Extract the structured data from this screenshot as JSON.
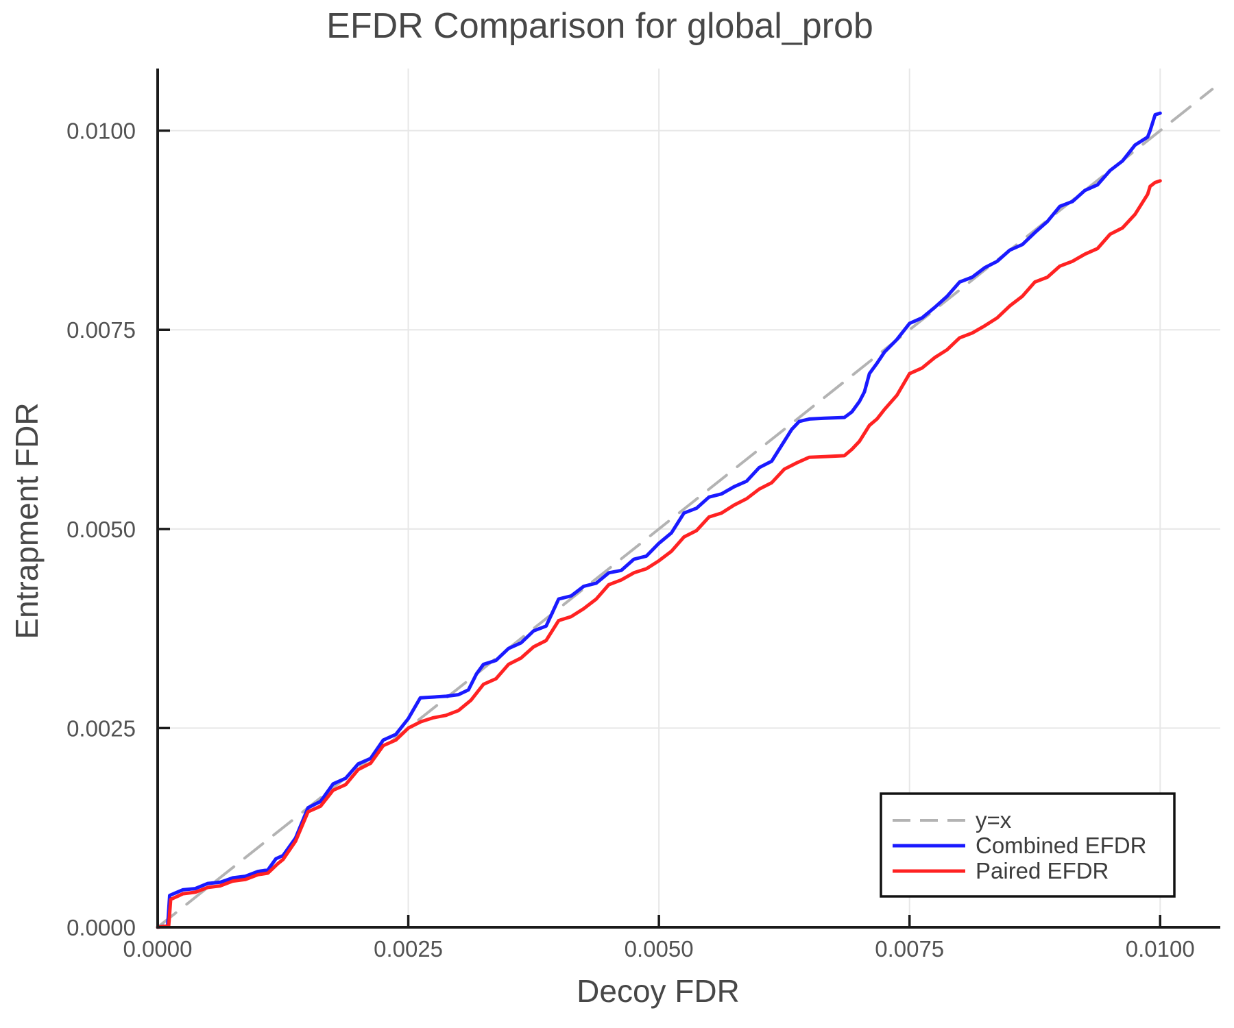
{
  "chart_data": {
    "type": "line",
    "title": "EFDR Comparison for global_prob",
    "xlabel": "Decoy FDR",
    "ylabel": "Entrapment FDR",
    "grid": true,
    "legend_position": "lower right",
    "xlim": [
      0,
      0.0106
    ],
    "ylim": [
      0,
      0.01078
    ],
    "x_ticks": [
      0.0,
      0.0025,
      0.005,
      0.0075,
      0.01
    ],
    "x_tick_labels": [
      "0.0000",
      "0.0025",
      "0.0050",
      "0.0075",
      "0.0100"
    ],
    "y_ticks": [
      0.0,
      0.0025,
      0.005,
      0.0075,
      0.01
    ],
    "y_tick_labels": [
      "0.0000",
      "0.0025",
      "0.0050",
      "0.0075",
      "0.0100"
    ],
    "series": [
      {
        "name": "y=x",
        "color": "#b3b3b3",
        "style": "dashed",
        "points": [
          [
            0.0,
            0.0
          ],
          [
            0.01052,
            0.01052
          ]
        ]
      },
      {
        "name": "Combined EFDR",
        "color": "#1a1aff",
        "style": "solid",
        "points": [
          [
            0.0,
            0.0
          ],
          [
            0.0001,
            2e-05
          ],
          [
            0.00012,
            0.0004
          ],
          [
            0.000185,
            0.000435
          ],
          [
            0.00025,
            0.00047
          ],
          [
            0.000375,
            0.000485
          ],
          [
            0.0005,
            0.00055
          ],
          [
            0.000625,
            0.000565
          ],
          [
            0.00075,
            0.00062
          ],
          [
            0.000875,
            0.00064
          ],
          [
            0.001,
            0.0007
          ],
          [
            0.0011,
            0.00072
          ],
          [
            0.00118,
            0.00086
          ],
          [
            0.00125,
            0.0009
          ],
          [
            0.001375,
            0.00112
          ],
          [
            0.0015,
            0.0015
          ],
          [
            0.001625,
            0.00158
          ],
          [
            0.00175,
            0.0018
          ],
          [
            0.001875,
            0.00187
          ],
          [
            0.002,
            0.00205
          ],
          [
            0.002125,
            0.00212
          ],
          [
            0.00225,
            0.00235
          ],
          [
            0.002375,
            0.00242
          ],
          [
            0.0025,
            0.00262
          ],
          [
            0.00256,
            0.00275
          ],
          [
            0.00262,
            0.00288
          ],
          [
            0.00275,
            0.00289
          ],
          [
            0.00288,
            0.0029
          ],
          [
            0.003,
            0.00292
          ],
          [
            0.0031,
            0.00298
          ],
          [
            0.00318,
            0.00318
          ],
          [
            0.00325,
            0.0033
          ],
          [
            0.003375,
            0.00335
          ],
          [
            0.0035,
            0.0035
          ],
          [
            0.003625,
            0.00357
          ],
          [
            0.00375,
            0.00372
          ],
          [
            0.003875,
            0.00378
          ],
          [
            0.004,
            0.00412
          ],
          [
            0.004125,
            0.00416
          ],
          [
            0.00425,
            0.00428
          ],
          [
            0.004375,
            0.00432
          ],
          [
            0.0045,
            0.00445
          ],
          [
            0.004625,
            0.00448
          ],
          [
            0.00475,
            0.00462
          ],
          [
            0.004875,
            0.00466
          ],
          [
            0.005,
            0.00482
          ],
          [
            0.005125,
            0.00495
          ],
          [
            0.00525,
            0.0052
          ],
          [
            0.005375,
            0.00526
          ],
          [
            0.0055,
            0.0054
          ],
          [
            0.005625,
            0.00544
          ],
          [
            0.00575,
            0.00553
          ],
          [
            0.005875,
            0.0056
          ],
          [
            0.006,
            0.00577
          ],
          [
            0.006125,
            0.00585
          ],
          [
            0.00625,
            0.0061
          ],
          [
            0.006325,
            0.00625
          ],
          [
            0.0064,
            0.00635
          ],
          [
            0.0065,
            0.00638
          ],
          [
            0.00665,
            0.00639
          ],
          [
            0.00685,
            0.0064
          ],
          [
            0.006925,
            0.00647
          ],
          [
            0.007,
            0.0066
          ],
          [
            0.00705,
            0.00672
          ],
          [
            0.0071,
            0.00695
          ],
          [
            0.007175,
            0.00708
          ],
          [
            0.00725,
            0.00722
          ],
          [
            0.007375,
            0.00738
          ],
          [
            0.0075,
            0.00758
          ],
          [
            0.007625,
            0.00765
          ],
          [
            0.00775,
            0.00778
          ],
          [
            0.007875,
            0.00792
          ],
          [
            0.008,
            0.0081
          ],
          [
            0.008125,
            0.00816
          ],
          [
            0.00825,
            0.00828
          ],
          [
            0.008375,
            0.00836
          ],
          [
            0.0085,
            0.0085
          ],
          [
            0.008625,
            0.00857
          ],
          [
            0.00875,
            0.00872
          ],
          [
            0.008875,
            0.00886
          ],
          [
            0.009,
            0.00905
          ],
          [
            0.009125,
            0.00911
          ],
          [
            0.00925,
            0.00925
          ],
          [
            0.009375,
            0.00932
          ],
          [
            0.0095,
            0.0095
          ],
          [
            0.009625,
            0.00962
          ],
          [
            0.00975,
            0.00982
          ],
          [
            0.009875,
            0.00992
          ],
          [
            0.0099,
            0.01
          ],
          [
            0.00995,
            0.0102
          ],
          [
            0.01,
            0.01022
          ]
        ]
      },
      {
        "name": "Paired EFDR",
        "color": "#ff2222",
        "style": "solid",
        "points": [
          [
            0.0,
            0.0
          ],
          [
            0.00011,
            2e-05
          ],
          [
            0.00013,
            0.00035
          ],
          [
            0.0002,
            0.00039
          ],
          [
            0.00025,
            0.00042
          ],
          [
            0.000375,
            0.00044
          ],
          [
            0.0005,
            0.0005
          ],
          [
            0.000625,
            0.00052
          ],
          [
            0.00075,
            0.00058
          ],
          [
            0.000875,
            0.0006
          ],
          [
            0.001,
            0.00066
          ],
          [
            0.0011,
            0.00068
          ],
          [
            0.0012,
            0.0008
          ],
          [
            0.00125,
            0.00085
          ],
          [
            0.001375,
            0.00108
          ],
          [
            0.0015,
            0.00145
          ],
          [
            0.001625,
            0.00152
          ],
          [
            0.00175,
            0.00172
          ],
          [
            0.001875,
            0.00179
          ],
          [
            0.002,
            0.00198
          ],
          [
            0.002125,
            0.00206
          ],
          [
            0.00225,
            0.00228
          ],
          [
            0.002375,
            0.00235
          ],
          [
            0.0025,
            0.0025
          ],
          [
            0.002625,
            0.00258
          ],
          [
            0.00275,
            0.00263
          ],
          [
            0.002875,
            0.00266
          ],
          [
            0.003,
            0.00272
          ],
          [
            0.003125,
            0.00285
          ],
          [
            0.00325,
            0.00305
          ],
          [
            0.003375,
            0.00312
          ],
          [
            0.0035,
            0.0033
          ],
          [
            0.003625,
            0.00338
          ],
          [
            0.00375,
            0.00352
          ],
          [
            0.003875,
            0.0036
          ],
          [
            0.004,
            0.00385
          ],
          [
            0.004125,
            0.0039
          ],
          [
            0.00425,
            0.004
          ],
          [
            0.004375,
            0.00412
          ],
          [
            0.0045,
            0.0043
          ],
          [
            0.004625,
            0.00436
          ],
          [
            0.00475,
            0.00445
          ],
          [
            0.004875,
            0.0045
          ],
          [
            0.005,
            0.0046
          ],
          [
            0.005125,
            0.00472
          ],
          [
            0.00525,
            0.0049
          ],
          [
            0.005375,
            0.00498
          ],
          [
            0.0055,
            0.00515
          ],
          [
            0.005625,
            0.0052
          ],
          [
            0.00575,
            0.0053
          ],
          [
            0.005875,
            0.00538
          ],
          [
            0.006,
            0.0055
          ],
          [
            0.006125,
            0.00558
          ],
          [
            0.00625,
            0.00575
          ],
          [
            0.006375,
            0.00583
          ],
          [
            0.0065,
            0.0059
          ],
          [
            0.006675,
            0.00591
          ],
          [
            0.00685,
            0.00592
          ],
          [
            0.006925,
            0.006
          ],
          [
            0.007,
            0.0061
          ],
          [
            0.0071,
            0.0063
          ],
          [
            0.007175,
            0.00638
          ],
          [
            0.00725,
            0.0065
          ],
          [
            0.007375,
            0.00668
          ],
          [
            0.0075,
            0.00695
          ],
          [
            0.007625,
            0.00702
          ],
          [
            0.00775,
            0.00715
          ],
          [
            0.007875,
            0.00725
          ],
          [
            0.008,
            0.0074
          ],
          [
            0.008125,
            0.00746
          ],
          [
            0.00825,
            0.00755
          ],
          [
            0.008375,
            0.00765
          ],
          [
            0.0085,
            0.0078
          ],
          [
            0.008625,
            0.00792
          ],
          [
            0.00875,
            0.0081
          ],
          [
            0.008875,
            0.00816
          ],
          [
            0.009,
            0.0083
          ],
          [
            0.009125,
            0.00836
          ],
          [
            0.00925,
            0.00845
          ],
          [
            0.009375,
            0.00852
          ],
          [
            0.0095,
            0.0087
          ],
          [
            0.009625,
            0.00878
          ],
          [
            0.00975,
            0.00895
          ],
          [
            0.009875,
            0.0092
          ],
          [
            0.0099,
            0.0093
          ],
          [
            0.00995,
            0.00935
          ],
          [
            0.01,
            0.00937
          ]
        ]
      }
    ]
  },
  "legend": {
    "items": [
      {
        "label": "y=x"
      },
      {
        "label": "Combined EFDR"
      },
      {
        "label": "Paired EFDR"
      }
    ]
  }
}
